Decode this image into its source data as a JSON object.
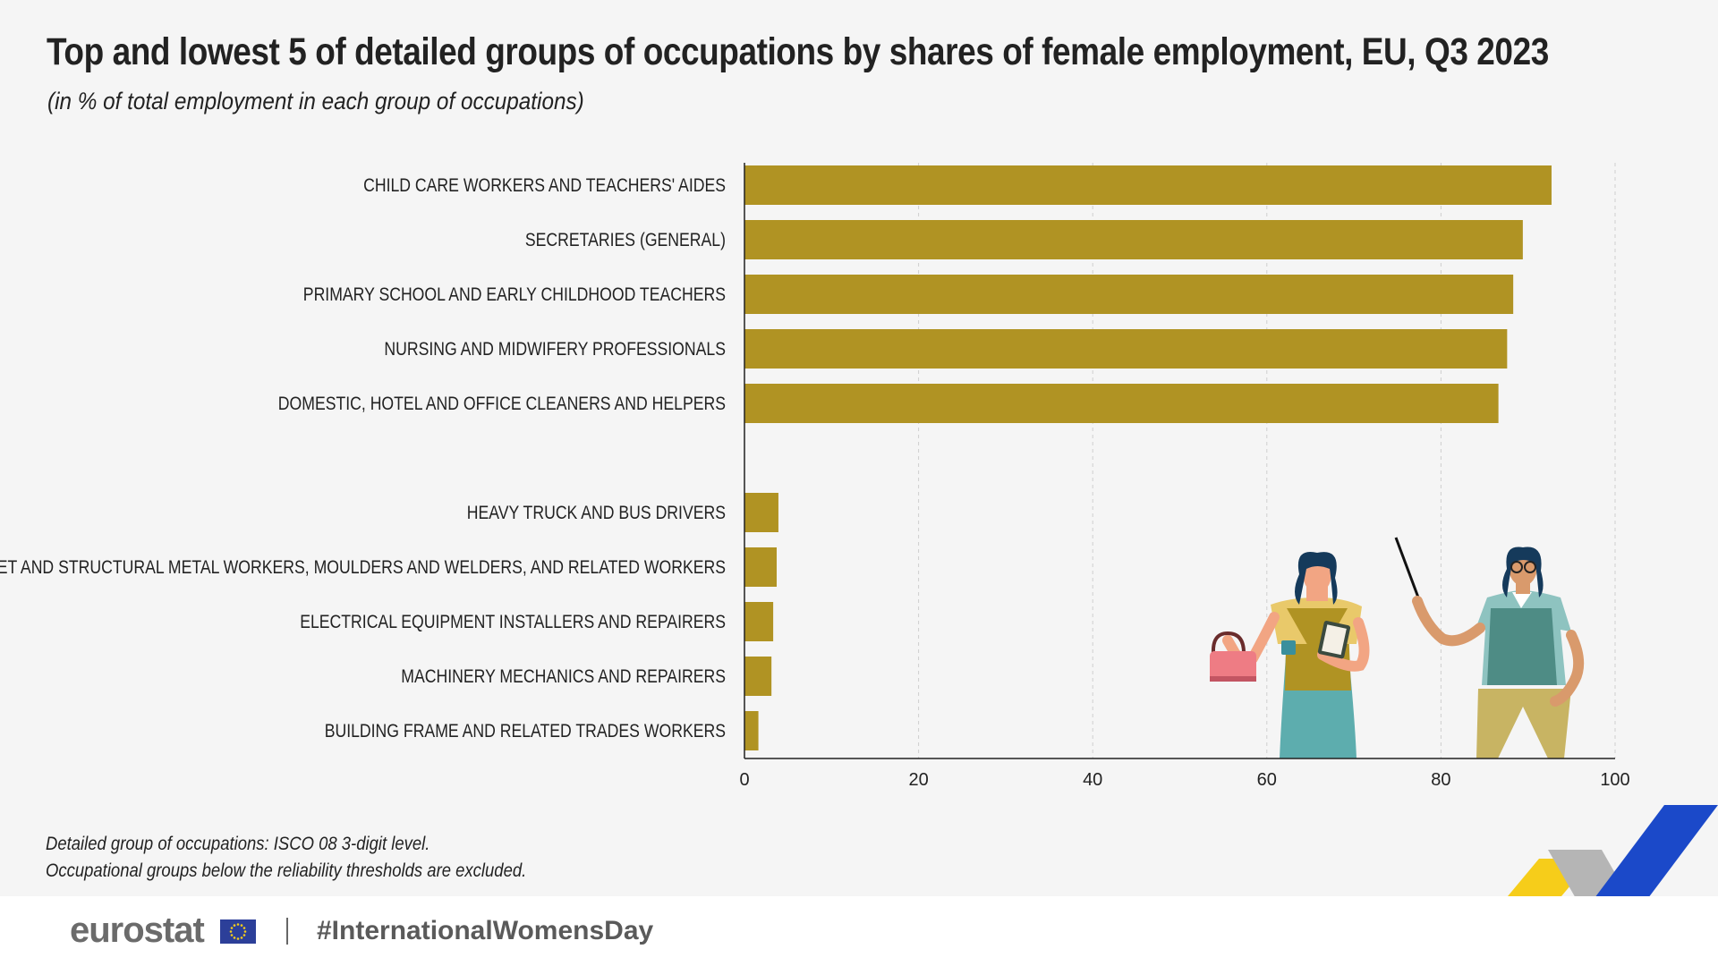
{
  "header": {
    "title": "Top and lowest 5 of detailed groups of occupations by shares of female employment, EU, Q3 2023",
    "subtitle": "(in % of total employment in each group of occupations)"
  },
  "chart_data": {
    "type": "bar",
    "orientation": "horizontal",
    "categories": [
      "CHILD CARE WORKERS AND TEACHERS' AIDES",
      "SECRETARIES (GENERAL)",
      "PRIMARY SCHOOL AND EARLY CHILDHOOD TEACHERS",
      "NURSING AND MIDWIFERY PROFESSIONALS",
      "DOMESTIC, HOTEL AND OFFICE CLEANERS AND HELPERS",
      "HEAVY TRUCK AND BUS DRIVERS",
      "SHEET AND STRUCTURAL METAL WORKERS, MOULDERS AND WELDERS, AND RELATED WORKERS",
      "ELECTRICAL EQUIPMENT INSTALLERS AND REPAIRERS",
      "MACHINERY MECHANICS AND REPAIRERS",
      "BUILDING FRAME AND RELATED TRADES WORKERS"
    ],
    "values": [
      92.7,
      89.4,
      88.3,
      87.6,
      86.6,
      3.9,
      3.7,
      3.3,
      3.1,
      1.6
    ],
    "xlim": [
      0,
      100
    ],
    "xticks": [
      0,
      20,
      40,
      60,
      80,
      100
    ],
    "grid": true,
    "bar_color": "#b09323"
  },
  "notes": [
    "Detailed group of occupations: ISCO 08 3-digit level.",
    "Occupational groups below the reliability thresholds are excluded."
  ],
  "footer": {
    "logo": "eurostat",
    "hashtag": "#InternationalWomensDay"
  }
}
